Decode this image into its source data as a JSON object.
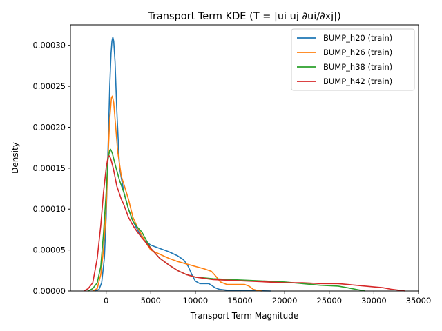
{
  "chart_data": {
    "type": "line",
    "title": "Transport Term KDE (T = |ui uj ∂ui/∂xj|)",
    "xlabel": "Transport Term Magnitude",
    "ylabel": "Density",
    "xlim": [
      -4000,
      35000
    ],
    "ylim": [
      0,
      0.000325
    ],
    "xticks": [
      0,
      5000,
      10000,
      15000,
      20000,
      25000,
      30000,
      35000
    ],
    "xtick_labels": [
      "0",
      "5000",
      "10000",
      "15000",
      "20000",
      "25000",
      "30000",
      "35000"
    ],
    "yticks": [
      0,
      5e-05,
      0.0001,
      0.00015,
      0.0002,
      0.00025,
      0.0003
    ],
    "ytick_labels": [
      "0.00000",
      "0.00005",
      "0.00010",
      "0.00015",
      "0.00020",
      "0.00025",
      "0.00030"
    ],
    "grid": false,
    "legend_position": "top-right",
    "series": [
      {
        "name": "BUMP_h20 (train)",
        "color": "#1f77b4",
        "points": [
          [
            -1200,
            0
          ],
          [
            -800,
            2e-06
          ],
          [
            -500,
            1e-05
          ],
          [
            -200,
            4e-05
          ],
          [
            0,
            9e-05
          ],
          [
            200,
            0.00017
          ],
          [
            400,
            0.00025
          ],
          [
            550,
            0.00029
          ],
          [
            650,
            0.000305
          ],
          [
            750,
            0.00031
          ],
          [
            850,
            0.000305
          ],
          [
            1000,
            0.00028
          ],
          [
            1200,
            0.00022
          ],
          [
            1500,
            0.00015
          ],
          [
            2000,
            0.00012
          ],
          [
            2500,
            0.0001
          ],
          [
            3000,
            8.5e-05
          ],
          [
            3500,
            7.5e-05
          ],
          [
            4000,
            6.5e-05
          ],
          [
            4500,
            6e-05
          ],
          [
            5000,
            5.6e-05
          ],
          [
            6000,
            5.2e-05
          ],
          [
            7000,
            4.8e-05
          ],
          [
            8000,
            4.3e-05
          ],
          [
            8700,
            3.8e-05
          ],
          [
            9200,
            3e-05
          ],
          [
            9600,
            2e-05
          ],
          [
            10000,
            1.2e-05
          ],
          [
            10500,
            9e-06
          ],
          [
            11000,
            9e-06
          ],
          [
            11500,
            9e-06
          ],
          [
            11800,
            7e-06
          ],
          [
            12200,
            4e-06
          ],
          [
            12700,
            2e-06
          ],
          [
            13500,
            1e-06
          ],
          [
            15000,
            5e-07
          ],
          [
            16500,
            3e-07
          ],
          [
            18500,
            0
          ]
        ]
      },
      {
        "name": "BUMP_h26 (train)",
        "color": "#ff7f0e",
        "points": [
          [
            -1500,
            0
          ],
          [
            -1000,
            3e-06
          ],
          [
            -600,
            2e-05
          ],
          [
            -300,
            5e-05
          ],
          [
            0,
            0.0001
          ],
          [
            200,
            0.00016
          ],
          [
            400,
            0.00021
          ],
          [
            600,
            0.000236
          ],
          [
            700,
            0.000238
          ],
          [
            850,
            0.00023
          ],
          [
            1000,
            0.00021
          ],
          [
            1300,
            0.00017
          ],
          [
            1700,
            0.00014
          ],
          [
            2000,
            0.00013
          ],
          [
            2500,
            0.000112
          ],
          [
            3000,
            9e-05
          ],
          [
            3500,
            7.8e-05
          ],
          [
            4000,
            6.8e-05
          ],
          [
            4500,
            5.8e-05
          ],
          [
            5000,
            5e-05
          ],
          [
            6000,
            4.5e-05
          ],
          [
            7000,
            4e-05
          ],
          [
            8000,
            3.6e-05
          ],
          [
            9000,
            3.3e-05
          ],
          [
            10000,
            3e-05
          ],
          [
            11000,
            2.7e-05
          ],
          [
            11800,
            2.4e-05
          ],
          [
            12300,
            1.8e-05
          ],
          [
            12800,
            1.1e-05
          ],
          [
            13500,
            8e-06
          ],
          [
            14500,
            8e-06
          ],
          [
            15500,
            8e-06
          ],
          [
            16000,
            6e-06
          ],
          [
            16500,
            2e-06
          ],
          [
            17000,
            5e-07
          ],
          [
            17500,
            0
          ]
        ]
      },
      {
        "name": "BUMP_h38 (train)",
        "color": "#2ca02c",
        "points": [
          [
            -2000,
            0
          ],
          [
            -1500,
            3e-06
          ],
          [
            -1000,
            1e-05
          ],
          [
            -600,
            3e-05
          ],
          [
            -300,
            7e-05
          ],
          [
            0,
            0.00012
          ],
          [
            200,
            0.00016
          ],
          [
            400,
            0.000172
          ],
          [
            500,
            0.000173
          ],
          [
            700,
            0.000168
          ],
          [
            1000,
            0.000155
          ],
          [
            1500,
            0.000135
          ],
          [
            2000,
            0.00012
          ],
          [
            2500,
            0.0001
          ],
          [
            3000,
            8.5e-05
          ],
          [
            3500,
            7.8e-05
          ],
          [
            4000,
            7.2e-05
          ],
          [
            4500,
            6.2e-05
          ],
          [
            5000,
            5.2e-05
          ],
          [
            6000,
            4e-05
          ],
          [
            7000,
            3.2e-05
          ],
          [
            8000,
            2.5e-05
          ],
          [
            9000,
            2e-05
          ],
          [
            10000,
            1.7e-05
          ],
          [
            12000,
            1.5e-05
          ],
          [
            14000,
            1.4e-05
          ],
          [
            16000,
            1.3e-05
          ],
          [
            18000,
            1.2e-05
          ],
          [
            20000,
            1.1e-05
          ],
          [
            22000,
            9e-06
          ],
          [
            24000,
            7e-06
          ],
          [
            26000,
            6e-06
          ],
          [
            27000,
            4e-06
          ],
          [
            28000,
            2e-06
          ],
          [
            29000,
            0
          ]
        ]
      },
      {
        "name": "BUMP_h42 (train)",
        "color": "#d62728",
        "points": [
          [
            -2500,
            0
          ],
          [
            -2000,
            3e-06
          ],
          [
            -1500,
            1e-05
          ],
          [
            -1000,
            4e-05
          ],
          [
            -600,
            8e-05
          ],
          [
            -300,
            0.00012
          ],
          [
            0,
            0.00015
          ],
          [
            200,
            0.000163
          ],
          [
            350,
            0.000165
          ],
          [
            500,
            0.000162
          ],
          [
            800,
            0.00015
          ],
          [
            1200,
            0.000128
          ],
          [
            1700,
            0.000112
          ],
          [
            2000,
            0.000105
          ],
          [
            2500,
            9e-05
          ],
          [
            3000,
            8e-05
          ],
          [
            3500,
            7.2e-05
          ],
          [
            4000,
            6.5e-05
          ],
          [
            5000,
            5.2e-05
          ],
          [
            6000,
            4e-05
          ],
          [
            7000,
            3.2e-05
          ],
          [
            8000,
            2.5e-05
          ],
          [
            9000,
            2e-05
          ],
          [
            10000,
            1.7e-05
          ],
          [
            12000,
            1.4e-05
          ],
          [
            14000,
            1.3e-05
          ],
          [
            16000,
            1.2e-05
          ],
          [
            18000,
            1.1e-05
          ],
          [
            20000,
            1e-05
          ],
          [
            22000,
            1e-05
          ],
          [
            24000,
            9e-06
          ],
          [
            26000,
            9e-06
          ],
          [
            28000,
            7e-06
          ],
          [
            30000,
            5e-06
          ],
          [
            31000,
            4e-06
          ],
          [
            32000,
            2e-06
          ],
          [
            33500,
            0
          ]
        ]
      }
    ]
  }
}
